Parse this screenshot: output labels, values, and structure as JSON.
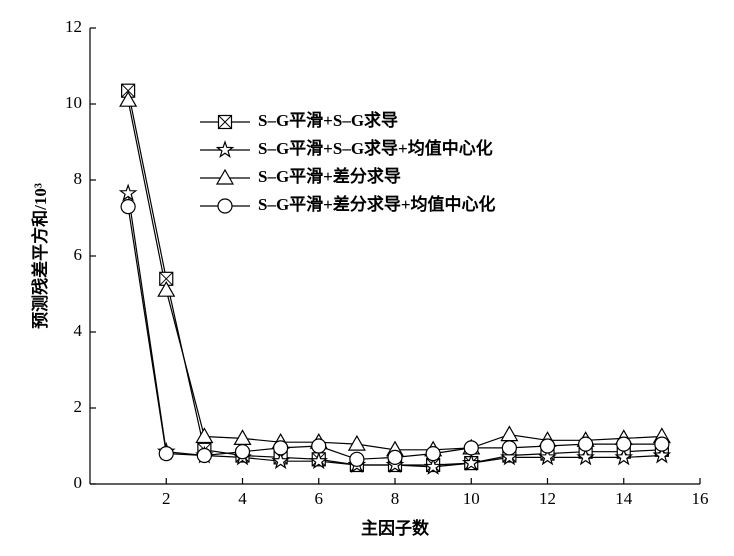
{
  "chart_data": {
    "type": "line",
    "x_label": "主因子数",
    "y_label": "预测残差平方和/10³",
    "x": [
      1,
      2,
      3,
      4,
      5,
      6,
      7,
      8,
      9,
      10,
      11,
      12,
      13,
      14,
      15
    ],
    "xlim": [
      0,
      16
    ],
    "xticks": [
      2,
      4,
      6,
      8,
      10,
      12,
      14,
      16
    ],
    "ylim": [
      0,
      12
    ],
    "yticks": [
      0,
      2,
      4,
      6,
      8,
      10,
      12
    ],
    "legend": "upper center",
    "series": [
      {
        "name": "S–G平滑+S–G求导",
        "color": "#000000",
        "marker": "square-x",
        "values": [
          10.35,
          5.4,
          0.9,
          0.75,
          0.7,
          0.65,
          0.5,
          0.5,
          0.5,
          0.55,
          0.75,
          0.8,
          0.85,
          0.85,
          0.9
        ]
      },
      {
        "name": "S–G平滑+S–G求导+均值中心化",
        "color": "#000000",
        "marker": "star",
        "values": [
          7.65,
          0.85,
          0.75,
          0.7,
          0.6,
          0.6,
          0.5,
          0.5,
          0.45,
          0.55,
          0.7,
          0.7,
          0.7,
          0.7,
          0.75
        ]
      },
      {
        "name": "S–G平滑+差分求导",
        "color": "#000000",
        "marker": "triangle",
        "values": [
          10.1,
          5.1,
          1.25,
          1.2,
          1.1,
          1.1,
          1.05,
          0.9,
          0.9,
          0.95,
          1.3,
          1.15,
          1.15,
          1.2,
          1.25
        ]
      },
      {
        "name": "S–G平滑+差分求导+均值中心化",
        "color": "#000000",
        "marker": "circle",
        "values": [
          7.3,
          0.8,
          0.75,
          0.85,
          0.95,
          1.0,
          0.65,
          0.7,
          0.8,
          0.95,
          0.95,
          1.0,
          1.05,
          1.05,
          1.05
        ]
      }
    ]
  }
}
